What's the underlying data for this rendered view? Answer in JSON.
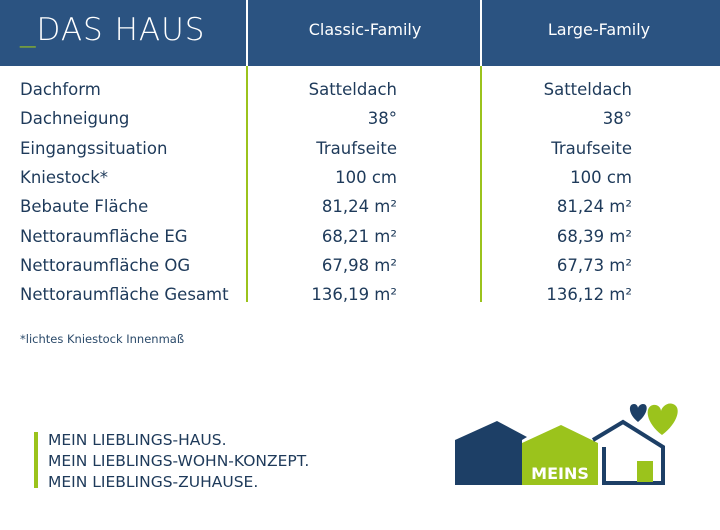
{
  "header": {
    "title_prefix": "_",
    "title": "DAS HAUS",
    "columns": [
      "Classic-Family",
      "Large-Family"
    ]
  },
  "rows": [
    {
      "label": "Dachform",
      "classic": "Satteldach",
      "large": "Satteldach"
    },
    {
      "label": "Dachneigung",
      "classic": "38°",
      "large": "38°"
    },
    {
      "label": "Eingangssituation",
      "classic": "Traufseite",
      "large": "Traufseite"
    },
    {
      "label": "Kniestock*",
      "classic": "100 cm",
      "large": "100 cm"
    },
    {
      "label": "Bebaute Fläche",
      "classic": "81,24 m²",
      "large": "81,24 m²"
    },
    {
      "label": "Nettoraumfläche EG",
      "classic": "68,21 m²",
      "large": "68,39 m²"
    },
    {
      "label": "Nettoraumfläche OG",
      "classic": "67,98 m²",
      "large": "67,73 m²"
    },
    {
      "label": "Nettoraumfläche Gesamt",
      "classic": "136,19 m²",
      "large": "136,12 m²"
    }
  ],
  "footnote": "*lichtes Kniestock Innenmaß",
  "slogan": [
    "MEIN LIEBLINGS-HAUS.",
    "MEIN LIEBLINGS-WOHN-KONZEPT.",
    "MEIN LIEBLINGS-ZUHAUSE."
  ],
  "logo": {
    "text": "MEINS"
  },
  "colors": {
    "navy": "#2b5381",
    "green": "#9bc31c",
    "text": "#1e3a5a",
    "logo_navy": "#1d3f66"
  }
}
